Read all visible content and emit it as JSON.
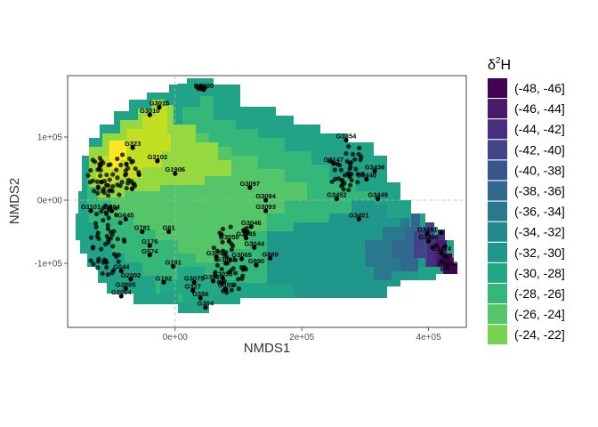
{
  "chart_data": {
    "type": "scatter",
    "subtype": "filled contour with labeled points",
    "xlabel": "NMDS1",
    "ylabel": "NMDS2",
    "x_ticks": [
      {
        "value": 0,
        "label": "0e+00"
      },
      {
        "value": 200000,
        "label": "2e+05"
      },
      {
        "value": 400000,
        "label": "4e+05"
      }
    ],
    "y_ticks": [
      {
        "value": -100000,
        "label": "-1e+05"
      },
      {
        "value": 0,
        "label": "0e+00"
      },
      {
        "value": 100000,
        "label": "1e+05"
      }
    ],
    "xlim": [
      -170000,
      460000
    ],
    "ylim": [
      -195000,
      200000
    ],
    "grid": false,
    "reference_lines": {
      "x": 0,
      "y": 0,
      "style": "dashed"
    },
    "legend": {
      "position": "right",
      "title_base": "δ",
      "title_sup": "2",
      "title_tail": "H",
      "entries": [
        {
          "label": "(-48, -46]",
          "color": "#440154"
        },
        {
          "label": "(-46, -44]",
          "color": "#481A6C"
        },
        {
          "label": "(-44, -42]",
          "color": "#472F7D"
        },
        {
          "label": "(-42, -40]",
          "color": "#414487"
        },
        {
          "label": "(-40, -38]",
          "color": "#39568C"
        },
        {
          "label": "(-38, -36]",
          "color": "#31688E"
        },
        {
          "label": "(-36, -34]",
          "color": "#2A788E"
        },
        {
          "label": "(-34, -32]",
          "color": "#23888E"
        },
        {
          "label": "(-32, -30]",
          "color": "#1F988B"
        },
        {
          "label": "(-30, -28]",
          "color": "#22A884"
        },
        {
          "label": "(-28, -26]",
          "color": "#35B779"
        },
        {
          "label": "(-26, -24]",
          "color": "#54C568"
        },
        {
          "label": "(-24, -22]",
          "color": "#7AD151"
        }
      ]
    },
    "labeled_points": [
      {
        "label": "G3000",
        "x": 45000,
        "y": 175000
      },
      {
        "label": "G3015",
        "x": -25000,
        "y": 147000
      },
      {
        "label": "G3010",
        "x": -40000,
        "y": 135000
      },
      {
        "label": "G323",
        "x": -67000,
        "y": 83000
      },
      {
        "label": "G3102",
        "x": -28000,
        "y": 62000
      },
      {
        "label": "G1906",
        "x": 0,
        "y": 42000
      },
      {
        "label": "G3097",
        "x": 118000,
        "y": 20000
      },
      {
        "label": "G3094",
        "x": 143000,
        "y": 0
      },
      {
        "label": "G3093",
        "x": 143000,
        "y": -17000
      },
      {
        "label": "G3046",
        "x": 120000,
        "y": -42000
      },
      {
        "label": "G3354",
        "x": 270000,
        "y": 95000
      },
      {
        "label": "G3147",
        "x": 250000,
        "y": 58000
      },
      {
        "label": "G3436",
        "x": 315000,
        "y": 46000
      },
      {
        "label": "G3440",
        "x": 302000,
        "y": 33000
      },
      {
        "label": "G3452",
        "x": 255000,
        "y": 2000
      },
      {
        "label": "G3449",
        "x": 320000,
        "y": 2000
      },
      {
        "label": "G3451",
        "x": 290000,
        "y": -30000
      },
      {
        "label": "G3461",
        "x": 398000,
        "y": -53000
      },
      {
        "label": "G3490",
        "x": 400000,
        "y": -65000
      },
      {
        "label": "G3474",
        "x": 420000,
        "y": -83000
      },
      {
        "label": "G3489",
        "x": 430000,
        "y": -107000
      },
      {
        "label": "G1101",
        "x": -133000,
        "y": -17000
      },
      {
        "label": "G704",
        "x": -100000,
        "y": -17000
      },
      {
        "label": "G645",
        "x": -78000,
        "y": -30000
      },
      {
        "label": "G781",
        "x": -52000,
        "y": -50000
      },
      {
        "label": "G61",
        "x": -10000,
        "y": -50000
      },
      {
        "label": "G176",
        "x": -40000,
        "y": -72000
      },
      {
        "label": "G574",
        "x": -40000,
        "y": -87000
      },
      {
        "label": "G044",
        "x": -85000,
        "y": -112000
      },
      {
        "label": "G191",
        "x": -3000,
        "y": -105000
      },
      {
        "label": "G2002",
        "x": -70000,
        "y": -125000
      },
      {
        "label": "G192",
        "x": -18000,
        "y": -130000
      },
      {
        "label": "G2005",
        "x": -78000,
        "y": -140000
      },
      {
        "label": "G2004",
        "x": -85000,
        "y": -152000
      },
      {
        "label": "G3075",
        "x": 30000,
        "y": -130000
      },
      {
        "label": "G327",
        "x": 28000,
        "y": -143000
      },
      {
        "label": "G3053",
        "x": 60000,
        "y": -128000
      },
      {
        "label": "G3055",
        "x": 75000,
        "y": -123000
      },
      {
        "label": "G355",
        "x": 80000,
        "y": -141000
      },
      {
        "label": "G356",
        "x": 40000,
        "y": -155000
      },
      {
        "label": "G304",
        "x": 48000,
        "y": -170000
      },
      {
        "label": "G3050",
        "x": 85000,
        "y": -65000
      },
      {
        "label": "G3045",
        "x": 112000,
        "y": -60000
      },
      {
        "label": "G3044",
        "x": 125000,
        "y": -75000
      },
      {
        "label": "G3051",
        "x": 65000,
        "y": -90000
      },
      {
        "label": "G3065",
        "x": 105000,
        "y": -93000
      },
      {
        "label": "G3043",
        "x": 80000,
        "y": -100000
      },
      {
        "label": "G889",
        "x": 150000,
        "y": -92000
      },
      {
        "label": "G890",
        "x": 128000,
        "y": -103000
      }
    ]
  }
}
